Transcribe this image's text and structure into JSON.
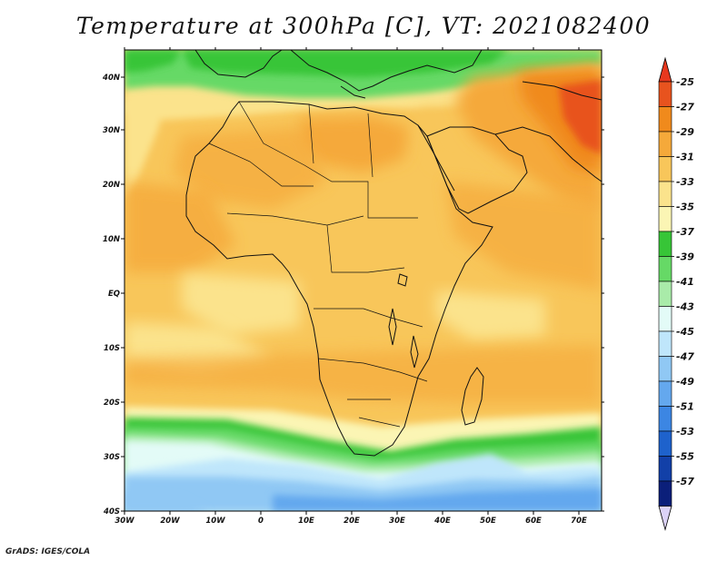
{
  "title": "Temperature at 300hPa [C], VT: 2021082400",
  "credit": "GrADS: IGES/COLA",
  "map": {
    "region": "Africa and surrounding oceans",
    "variable": "temperature",
    "level": "300hPa",
    "units": "C",
    "lon_range": [
      -30,
      75
    ],
    "lat_range": [
      -40,
      45
    ],
    "lon_ticks": [
      "30W",
      "20W",
      "10W",
      "0",
      "10E",
      "20E",
      "30E",
      "40E",
      "50E",
      "60E",
      "70E"
    ],
    "lat_ticks": [
      "40S",
      "30S",
      "20S",
      "10S",
      "EQ",
      "10N",
      "20N",
      "30N",
      "40N"
    ]
  },
  "colorbar": {
    "labels": [
      "-25",
      "-27",
      "-29",
      "-31",
      "-33",
      "-35",
      "-37",
      "-39",
      "-41",
      "-43",
      "-45",
      "-47",
      "-49",
      "-51",
      "-53",
      "-55",
      "-57"
    ],
    "colors": [
      "#e8531e",
      "#f08a1c",
      "#f5a93a",
      "#f8c65a",
      "#fbe38c",
      "#fbf5b4",
      "#37c537",
      "#66d966",
      "#a9eba9",
      "#e3fbf7",
      "#bfe6fb",
      "#90c8f4",
      "#64a8ee",
      "#3c86e3",
      "#1e62cc",
      "#1240a8",
      "#0b1f7a"
    ],
    "top_color": "#e8381e",
    "bottom_color": "#dcd3f7"
  }
}
